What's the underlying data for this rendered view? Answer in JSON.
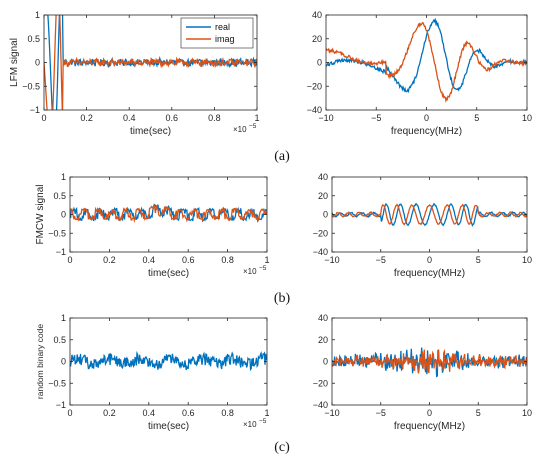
{
  "colors": {
    "real": "#0072BD",
    "imag": "#D95319",
    "axis": "#262626"
  },
  "panel_labels": [
    "(a)",
    "(b)",
    "(c)"
  ],
  "legend": {
    "entries": [
      "real",
      "imag"
    ],
    "placement": "top-right of top-left axes"
  },
  "chart_data": [
    {
      "id": "a-time",
      "type": "line",
      "title": "",
      "xlabel": "time(sec)",
      "ylabel": "LFM signal",
      "xlim": [
        0,
        1
      ],
      "ylim": [
        -1,
        1
      ],
      "x_multiplier": "×10",
      "x_multiplier_exponent": "−5",
      "xticks": [
        "0",
        "0.2",
        "0.4",
        "0.6",
        "0.8",
        "1"
      ],
      "yticks": [
        "−1",
        "−0.5",
        "0",
        "0.5",
        "1"
      ],
      "grid": false,
      "series": [
        {
          "name": "real",
          "kind": "lfm-real",
          "amplitude": 0.07
        },
        {
          "name": "imag",
          "kind": "lfm-imag",
          "amplitude": 0.07
        }
      ]
    },
    {
      "id": "a-freq",
      "type": "line",
      "title": "",
      "xlabel": "frequency(MHz)",
      "ylabel": "",
      "xlim": [
        -10,
        10
      ],
      "ylim": [
        -40,
        40
      ],
      "xticks": [
        "−10",
        "−5",
        "0",
        "5",
        "10"
      ],
      "yticks": [
        "−40",
        "−20",
        "0",
        "20",
        "40"
      ],
      "grid": false,
      "series": [
        {
          "name": "real",
          "kind": "chirp-spectrum",
          "phase": 0
        },
        {
          "name": "imag",
          "kind": "chirp-spectrum",
          "phase": 1.57
        }
      ]
    },
    {
      "id": "b-time",
      "type": "line",
      "title": "",
      "xlabel": "time(sec)",
      "ylabel": "FMCW signal",
      "xlim": [
        0,
        1
      ],
      "ylim": [
        -1,
        1
      ],
      "x_multiplier": "×10",
      "x_multiplier_exponent": "−5",
      "xticks": [
        "0",
        "0.2",
        "0.4",
        "0.6",
        "0.8",
        "1"
      ],
      "yticks": [
        "−1",
        "−0.5",
        "0",
        "0.5",
        "1"
      ],
      "grid": false,
      "series": [
        {
          "name": "real",
          "kind": "noise-osc",
          "amplitude": 0.15,
          "phase": 0
        },
        {
          "name": "imag",
          "kind": "noise-osc",
          "amplitude": 0.14,
          "phase": 1.3
        }
      ]
    },
    {
      "id": "b-freq",
      "type": "line",
      "title": "",
      "xlabel": "frequency(MHz)",
      "ylabel": "",
      "xlim": [
        -10,
        10
      ],
      "ylim": [
        -40,
        40
      ],
      "xticks": [
        "−10",
        "−5",
        "0",
        "5",
        "10"
      ],
      "yticks": [
        "−40",
        "−20",
        "0",
        "20",
        "40"
      ],
      "grid": false,
      "series": [
        {
          "name": "real",
          "kind": "band-spectrum",
          "band": [
            -5,
            5
          ],
          "amplitude": 11,
          "phase": 0
        },
        {
          "name": "imag",
          "kind": "band-spectrum",
          "band": [
            -5,
            5
          ],
          "amplitude": 10,
          "phase": 1.57
        }
      ]
    },
    {
      "id": "c-time",
      "type": "line",
      "title": "",
      "xlabel": "time(sec)",
      "ylabel": "random binary code",
      "xlim": [
        0,
        1
      ],
      "ylim": [
        -1,
        1
      ],
      "x_multiplier": "×10",
      "x_multiplier_exponent": "−5",
      "xticks": [
        "0",
        "0.2",
        "0.4",
        "0.6",
        "0.8",
        "1"
      ],
      "yticks": [
        "−1",
        "−0.5",
        "0",
        "0.5",
        "1"
      ],
      "grid": false,
      "series": [
        {
          "name": "real",
          "kind": "noise",
          "amplitude": 0.14,
          "phase": 0
        }
      ]
    },
    {
      "id": "c-freq",
      "type": "line",
      "title": "",
      "xlabel": "frequency(MHz)",
      "ylabel": "",
      "xlim": [
        -10,
        10
      ],
      "ylim": [
        -40,
        40
      ],
      "xticks": [
        "−10",
        "−5",
        "0",
        "5",
        "10"
      ],
      "yticks": [
        "−40",
        "−20",
        "0",
        "20",
        "40"
      ],
      "grid": false,
      "series": [
        {
          "name": "real",
          "kind": "noise-spectrum",
          "amplitude": 7,
          "phase": 0
        },
        {
          "name": "imag",
          "kind": "noise-spectrum",
          "amplitude": 6,
          "phase": 2.1
        }
      ]
    }
  ]
}
